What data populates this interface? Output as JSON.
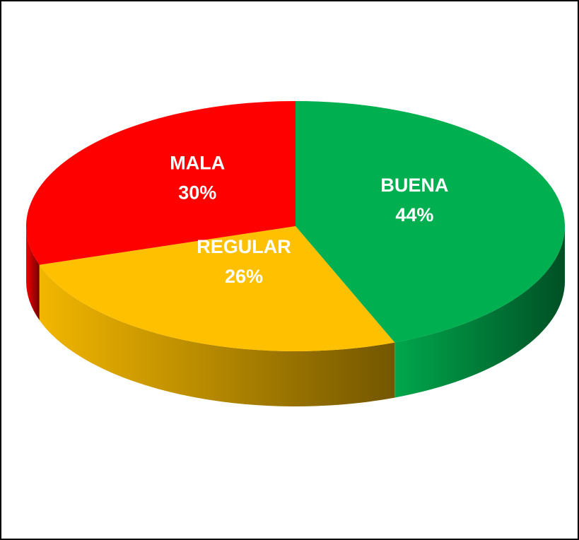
{
  "chart_data": {
    "type": "pie",
    "categories": [
      "BUENA",
      "REGULAR",
      "MALA"
    ],
    "values": [
      44,
      26,
      30
    ],
    "value_labels": [
      "44%",
      "26%",
      "30%"
    ],
    "colors": [
      "#00b050",
      "#ffc000",
      "#ff0000"
    ]
  }
}
